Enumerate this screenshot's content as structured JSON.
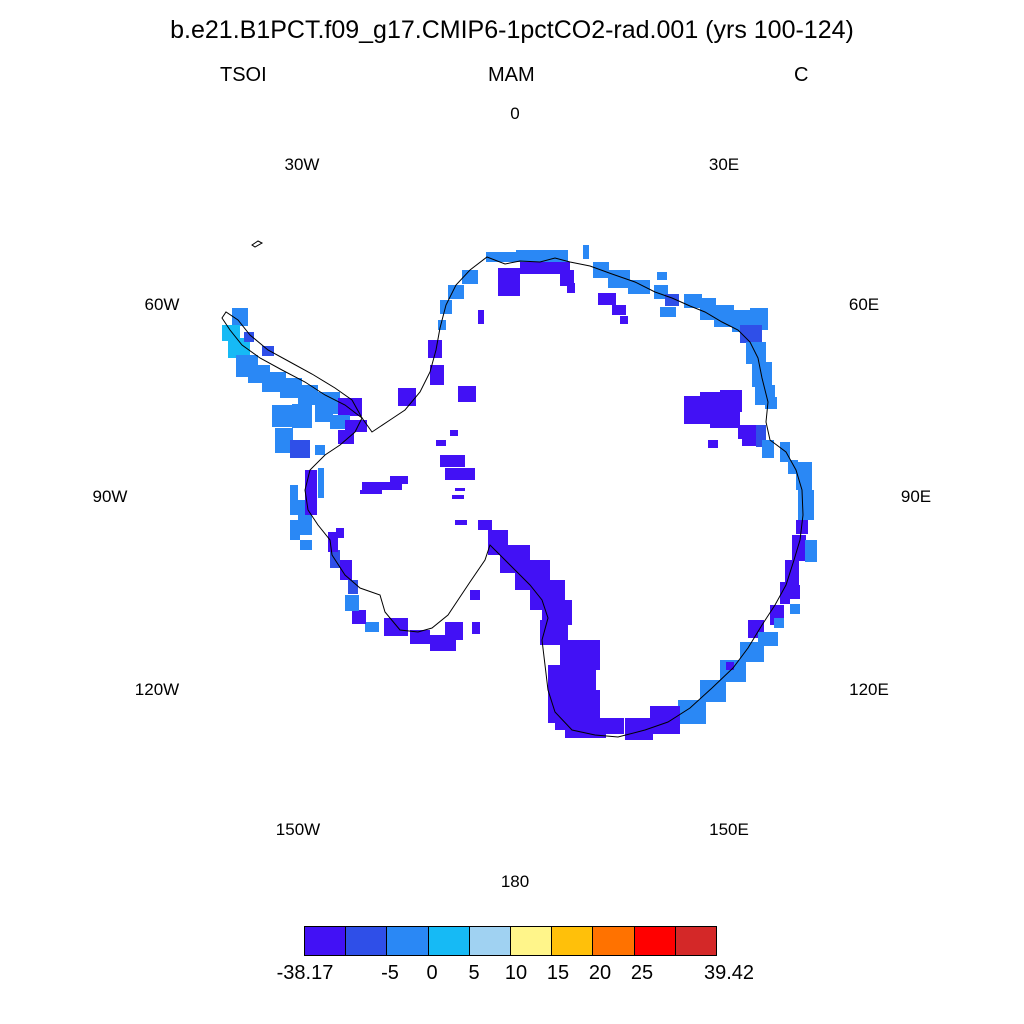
{
  "title": "b.e21.B1PCT.f09_g17.CMIP6-1pctCO2-rad.001 (yrs 100-124)",
  "left_string": "TSOI",
  "center_string": "MAM",
  "right_string": "C",
  "longitude_labels": [
    "0",
    "30E",
    "60E",
    "90E",
    "120E",
    "150E",
    "180",
    "150W",
    "120W",
    "90W",
    "60W",
    "30W"
  ],
  "colors": {
    "deep_purple": "#4211f5",
    "blue": "#2f4fe8",
    "mid_blue": "#2a88f5",
    "cyan": "#16baf5",
    "coastline": "#000000"
  },
  "colorbar": {
    "colors": [
      "#4211f5",
      "#2f4fe8",
      "#2a88f5",
      "#16baf5",
      "#a0d2f2",
      "#fff58a",
      "#ffc00a",
      "#ff7200",
      "#ff0000",
      "#d42828"
    ],
    "labels": [
      "-38.17",
      "-5",
      "0",
      "5",
      "10",
      "15",
      "20",
      "25",
      "39.42"
    ]
  },
  "chart_data": {
    "type": "heatmap",
    "projection": "south polar stereographic",
    "variable": "TSOI",
    "season": "MAM",
    "units": "C",
    "color_levels": [
      -5,
      0,
      5,
      10,
      15,
      20,
      25
    ],
    "range": [
      -38.17,
      39.42
    ]
  }
}
